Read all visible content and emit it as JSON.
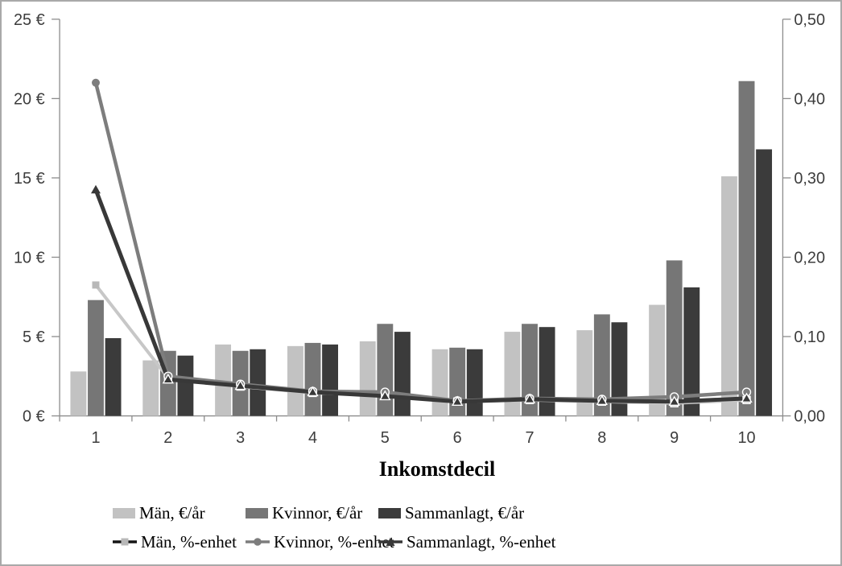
{
  "chart_data": {
    "type": "bar-line-combo",
    "xlabel": "Inkomstdecil",
    "categories": [
      "1",
      "2",
      "3",
      "4",
      "5",
      "6",
      "7",
      "8",
      "9",
      "10"
    ],
    "left_axis": {
      "min": 0,
      "max": 25,
      "tick_values": [
        0,
        5,
        10,
        15,
        20,
        25
      ],
      "tick_labels": [
        "0 €",
        "5 €",
        "10 €",
        "15 €",
        "20 €",
        "25 €"
      ]
    },
    "right_axis": {
      "min": 0,
      "max": 0.5,
      "tick_values": [
        0,
        0.1,
        0.2,
        0.3,
        0.4,
        0.5
      ],
      "tick_labels": [
        "0,00",
        "0,10",
        "0,20",
        "0,30",
        "0,40",
        "0,50"
      ]
    },
    "bar_series": [
      {
        "id": "man-eur",
        "name": "Män, €/år",
        "color": "#c2c2c2",
        "values": [
          2.8,
          3.5,
          4.5,
          4.4,
          4.7,
          4.2,
          5.3,
          5.4,
          7.0,
          15.1
        ]
      },
      {
        "id": "kvinnor-eur",
        "name": "Kvinnor, €/år",
        "color": "#767676",
        "values": [
          7.3,
          4.1,
          4.1,
          4.6,
          5.8,
          4.3,
          5.8,
          6.4,
          9.8,
          21.1
        ]
      },
      {
        "id": "sammanlagt-eur",
        "name": "Sammanlagt, €/år",
        "color": "#3b3b3b",
        "values": [
          4.9,
          3.8,
          4.2,
          4.5,
          5.3,
          4.2,
          5.6,
          5.9,
          8.1,
          16.8
        ]
      }
    ],
    "line_series": [
      {
        "id": "man-pct",
        "name": "Män, %-enhet",
        "marker": "square",
        "line_color": "#c7c7c7",
        "marker_color": "#b8b8b8",
        "legend_line_color": "#151515",
        "values": [
          0.165,
          0.048,
          0.037,
          0.029,
          0.026,
          0.018,
          0.02,
          0.018,
          0.016,
          0.02
        ]
      },
      {
        "id": "kvinnor-pct",
        "name": "Kvinnor, %-enhet",
        "marker": "circle",
        "line_color": "#7d7d7d",
        "marker_color": "#7d7d7d",
        "values": [
          0.42,
          0.05,
          0.04,
          0.031,
          0.03,
          0.019,
          0.022,
          0.021,
          0.024,
          0.03
        ]
      },
      {
        "id": "sammanlagt-pct",
        "name": "Sammanlagt, %-enhet",
        "marker": "triangle",
        "line_color": "#383838",
        "marker_color": "#383838",
        "values": [
          0.285,
          0.046,
          0.038,
          0.03,
          0.025,
          0.018,
          0.021,
          0.019,
          0.018,
          0.022
        ]
      }
    ],
    "legend_position": "bottom",
    "grid": "off",
    "styles": {
      "axis_line_color": "#8c8c8c",
      "tick_label_color": "#3d3d3d",
      "frame_border_color": "#a9a9a9",
      "background": "#ffffff"
    }
  }
}
